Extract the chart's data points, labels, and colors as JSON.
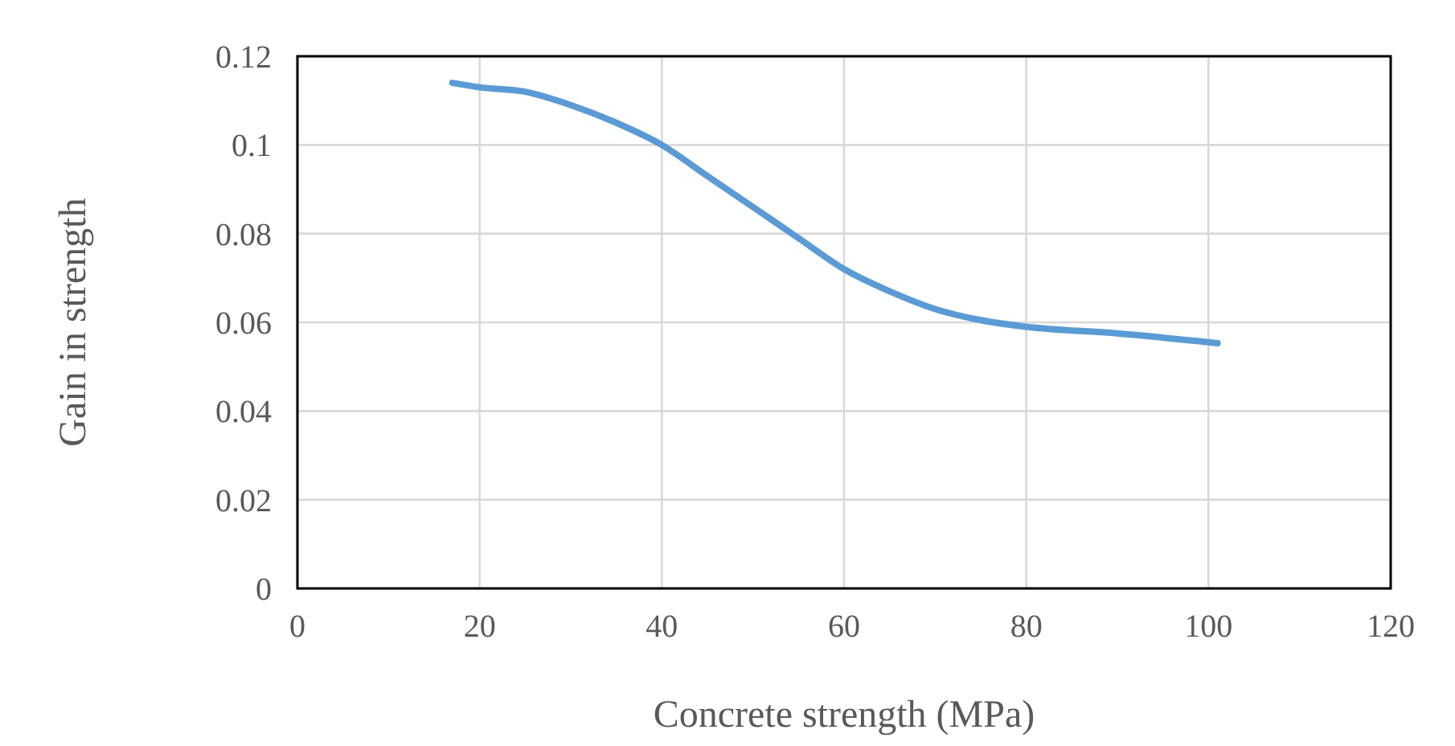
{
  "chart_data": {
    "type": "line",
    "xlabel": "Concrete strength (MPa)",
    "ylabel": "Gain in strength",
    "xlim": [
      0,
      120
    ],
    "xticks": [
      0,
      20,
      40,
      60,
      80,
      100,
      120
    ],
    "ylim": [
      0,
      0.12
    ],
    "yticks": [
      0,
      0.02,
      0.04,
      0.06,
      0.08,
      0.1,
      0.12
    ],
    "grid": true,
    "marker": "none",
    "line_style": "solid",
    "series": [
      {
        "color": "#5b9bd5",
        "x": [
          17,
          20,
          25,
          30,
          35,
          40,
          45,
          50,
          55,
          60,
          65,
          70,
          75,
          80,
          90,
          101
        ],
        "values": [
          0.114,
          0.113,
          0.112,
          0.109,
          0.105,
          0.1,
          0.093,
          0.086,
          0.079,
          0.072,
          0.067,
          0.063,
          0.0605,
          0.059,
          0.0575,
          0.0553
        ]
      }
    ]
  }
}
